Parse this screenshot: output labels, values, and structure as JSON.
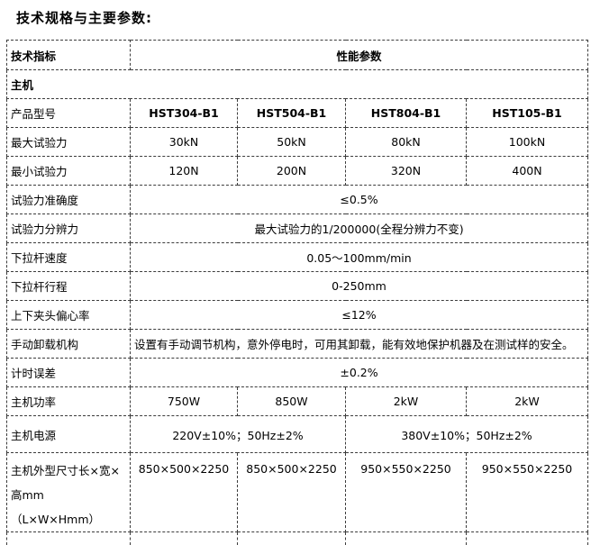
{
  "page_title": "技术规格与主要参数:",
  "colors": {
    "background": "#ffffff",
    "text": "#000000",
    "table_border": "#3c3c3c"
  },
  "table": {
    "header": {
      "indicator_label": "技术指标",
      "performance_label": "性能参数"
    },
    "section_label": "主机",
    "rows": [
      {
        "label": "产品型号",
        "bold_values": true,
        "values": [
          "HST304-B1",
          "HST504-B1",
          "HST804-B1",
          "HST105-B1"
        ]
      },
      {
        "label": "最大试验力",
        "values": [
          "30kN",
          "50kN",
          "80kN",
          "100kN"
        ]
      },
      {
        "label": "最小试验力",
        "values": [
          "120N",
          "200N",
          "320N",
          "400N"
        ]
      },
      {
        "label": "试验力准确度",
        "values": [
          "≤0.5%"
        ]
      },
      {
        "label": "试验力分辨力",
        "values": [
          "最大试验力的1/200000(全程分辨力不变)"
        ]
      },
      {
        "label": "下拉杆速度",
        "values": [
          "0.05～100mm/min"
        ]
      },
      {
        "label": "下拉杆行程",
        "values": [
          "0-250mm"
        ]
      },
      {
        "label": "上下夹头偏心率",
        "values": [
          "≤12%"
        ]
      },
      {
        "label": "手动卸载机构",
        "align": "left",
        "values": [
          "设置有手动调节机构，意外停电时，可用其卸载，能有效地保护机器及在测试样的安全。"
        ]
      },
      {
        "label": "计时误差",
        "values": [
          "±0.2%"
        ]
      },
      {
        "label": "主机功率",
        "values": [
          "750W",
          "850W",
          "2kW",
          "2kW"
        ]
      },
      {
        "label": "主机电源",
        "values": [
          "220V±10%；50Hz±2%",
          "380V±10%；50Hz±2%"
        ]
      },
      {
        "label": "主机外型尺寸长×宽×高mm（L×W×Hmm）",
        "values": [
          "850×500×2250",
          "850×500×2250",
          "950×550×2250",
          "950×550×2250"
        ]
      }
    ]
  }
}
